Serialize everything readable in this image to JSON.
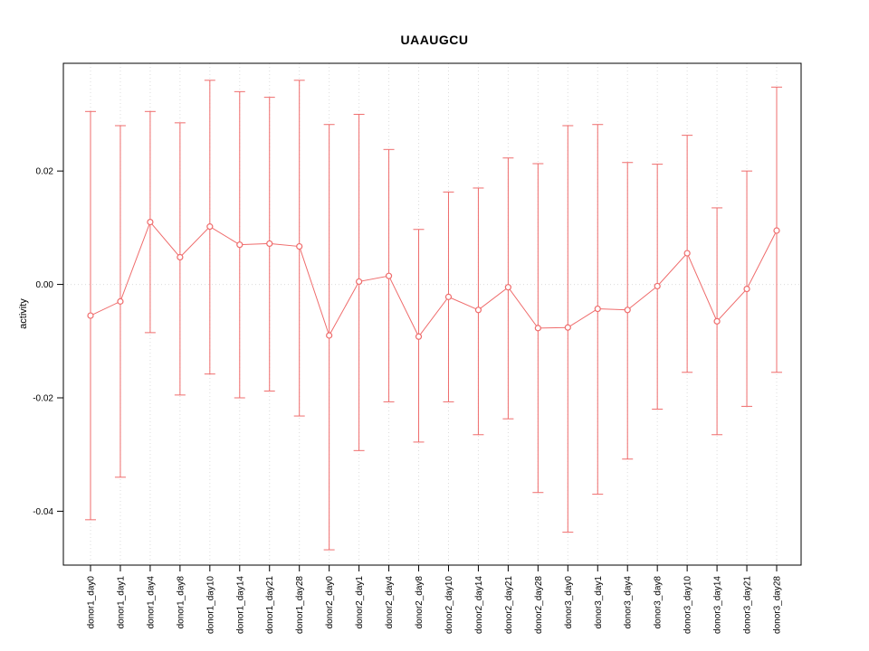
{
  "chart_data": {
    "type": "scatter",
    "title": "UAAUGCU",
    "xlabel": "",
    "ylabel": "activity",
    "legend": "none",
    "grid": "dotted vertical line at each category; dotted horizontal line at 0",
    "marker": "open-circle",
    "categories": [
      "donor1_day0",
      "donor1_day1",
      "donor1_day4",
      "donor1_day8",
      "donor1_day10",
      "donor1_day14",
      "donor1_day21",
      "donor1_day28",
      "donor2_day0",
      "donor2_day1",
      "donor2_day4",
      "donor2_day8",
      "donor2_day10",
      "donor2_day14",
      "donor2_day21",
      "donor2_day28",
      "donor3_day0",
      "donor3_day1",
      "donor3_day4",
      "donor3_day8",
      "donor3_day10",
      "donor3_day14",
      "donor3_day21",
      "donor3_day28"
    ],
    "series": [
      {
        "name": "activity",
        "values": [
          -0.0055,
          -0.003,
          0.011,
          0.0048,
          0.0102,
          0.007,
          0.0072,
          0.0067,
          -0.009,
          0.0005,
          0.0015,
          -0.0092,
          -0.0022,
          -0.0045,
          -0.0005,
          -0.0077,
          -0.0076,
          -0.0043,
          -0.0045,
          -0.0003,
          0.0055,
          -0.0065,
          -0.0008,
          0.0095
        ],
        "error_high": [
          0.0305,
          0.028,
          0.0305,
          0.0285,
          0.036,
          0.034,
          0.033,
          0.036,
          0.0282,
          0.03,
          0.0238,
          0.0097,
          0.0163,
          0.017,
          0.0223,
          0.0213,
          0.028,
          0.0282,
          0.0215,
          0.0212,
          0.0263,
          0.0135,
          0.02,
          0.0348
        ],
        "error_low": [
          -0.0415,
          -0.034,
          -0.0085,
          -0.0195,
          -0.0158,
          -0.02,
          -0.0188,
          -0.0232,
          -0.0468,
          -0.0293,
          -0.0207,
          -0.0278,
          -0.0207,
          -0.0265,
          -0.0237,
          -0.0367,
          -0.0437,
          -0.037,
          -0.0308,
          -0.022,
          -0.0155,
          -0.0265,
          -0.0215,
          -0.0155
        ]
      }
    ],
    "ylim": [
      -0.0495,
      0.039
    ],
    "yticks": [
      -0.04,
      -0.02,
      0,
      0.02
    ],
    "ytick_labels": [
      "-0.04",
      "-0.02",
      "0.00",
      "0.02"
    ],
    "colors": {
      "series": "#EF6C6C",
      "grid": "#DCDCDC",
      "axis": "#000000",
      "background": "#FFFFFF"
    }
  }
}
